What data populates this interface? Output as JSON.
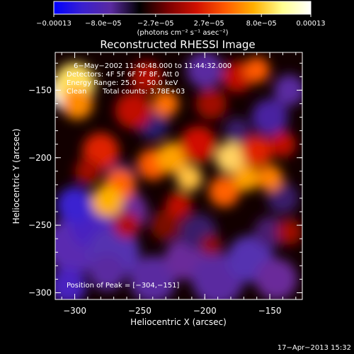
{
  "chart_data": {
    "type": "heatmap",
    "title": "Reconstructed RHESSI Image",
    "xlabel": "Heliocentric X (arcsec)",
    "ylabel": "Heliocentric Y (arcsec)",
    "xlim": [
      -315,
      -125
    ],
    "ylim": [
      -305,
      -122
    ],
    "x_ticks": [
      {
        "v": -300,
        "label": "−300"
      },
      {
        "v": -250,
        "label": "−250"
      },
      {
        "v": -200,
        "label": "−200"
      },
      {
        "v": -150,
        "label": "−150"
      }
    ],
    "y_ticks": [
      {
        "v": -150,
        "label": "−150"
      },
      {
        "v": -200,
        "label": "−200"
      },
      {
        "v": -250,
        "label": "−250"
      },
      {
        "v": -300,
        "label": "−300"
      }
    ],
    "colorbar": {
      "min": -0.00013,
      "max": 0.00013,
      "ticks": [
        {
          "v": -0.00013,
          "label": "−0.00013"
        },
        {
          "v": -8e-05,
          "label": "−8.0e−05"
        },
        {
          "v": -2.7e-05,
          "label": "−2.7e−05"
        },
        {
          "v": 2.7e-05,
          "label": "2.7e−05"
        },
        {
          "v": 8e-05,
          "label": "8.0e−05"
        },
        {
          "v": 0.00013,
          "label": "0.00013"
        }
      ],
      "unit_label": "(photons cm⁻² s⁻¹ asec⁻²)",
      "colors": [
        "#0000ff",
        "#3a20d0",
        "#5a2aa0",
        "#000000",
        "#7a0000",
        "#d01000",
        "#ff5a00",
        "#ffb000",
        "#ffff90",
        "#ffffff"
      ]
    },
    "annotations": {
      "time_range": "6−May−2002 11:40:48.000 to 11:44:32.000",
      "detectors": "Detectors: 4F 5F 6F 7F 8F, Att 0",
      "energy": "Energy Range: 25.0 − 50.0 keV",
      "method": "Clean",
      "total_counts": "Total counts: 3.78E+03",
      "peak": "Position of Peak = [−304,−151]"
    },
    "peak": {
      "x": -304,
      "y": -151
    }
  },
  "footer": {
    "date": "17−Apr−2013 15:32"
  }
}
